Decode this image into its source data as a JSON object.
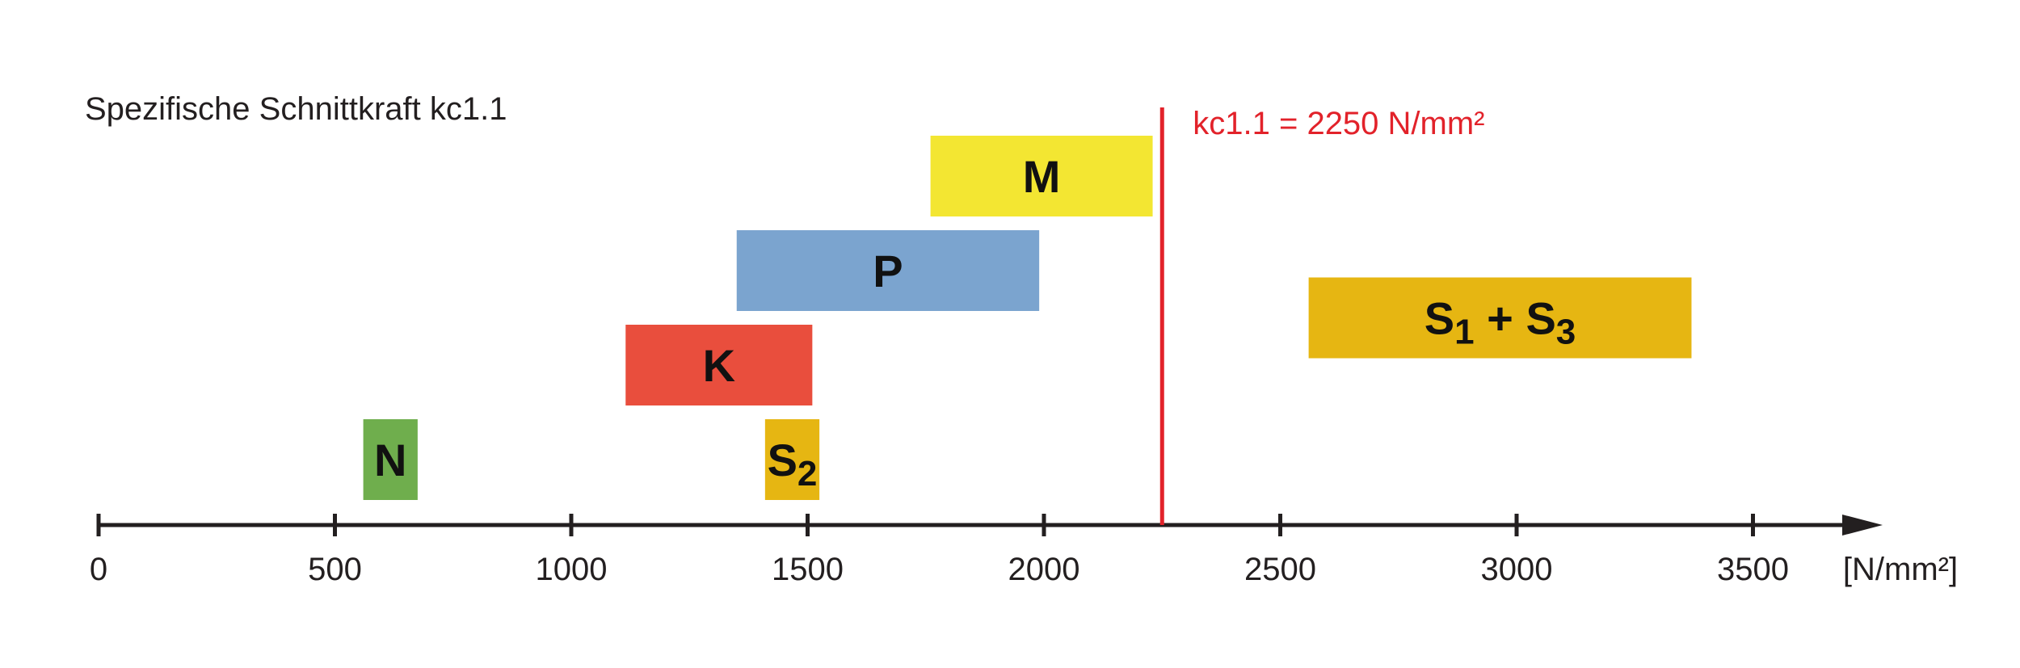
{
  "chart_data": {
    "type": "range-bar",
    "title": "Spezifische Schnittkraft kc1.1",
    "unit_label": "[N/mm²]",
    "xlim": [
      0,
      3800
    ],
    "ticks": [
      {
        "value": 0,
        "label": "0"
      },
      {
        "value": 500,
        "label": "500"
      },
      {
        "value": 1000,
        "label": "1000"
      },
      {
        "value": 1500,
        "label": "1500"
      },
      {
        "value": 2000,
        "label": "2000"
      },
      {
        "value": 2500,
        "label": "2500"
      },
      {
        "value": 3000,
        "label": "3000"
      },
      {
        "value": 3500,
        "label": "3500"
      }
    ],
    "reference_line": {
      "value": 2250,
      "label": "kc1.1 = 2250 N/mm²",
      "color": "#e2222a"
    },
    "bars": [
      {
        "id": "M",
        "base": "M",
        "sub1": "",
        "join": "",
        "base2": "",
        "sub2": "",
        "start": 1760,
        "end": 2230,
        "row": 0,
        "color": "#f3e632"
      },
      {
        "id": "P",
        "base": "P",
        "sub1": "",
        "join": "",
        "base2": "",
        "sub2": "",
        "start": 1350,
        "end": 1990,
        "row": 1,
        "color": "#7ba4cf"
      },
      {
        "id": "S13",
        "base": "S",
        "sub1": "1",
        "join": " + ",
        "base2": "S",
        "sub2": "3",
        "start": 2560,
        "end": 3370,
        "row": 1.5,
        "color": "#e6b612"
      },
      {
        "id": "K",
        "base": "K",
        "sub1": "",
        "join": "",
        "base2": "",
        "sub2": "",
        "start": 1115,
        "end": 1510,
        "row": 2,
        "color": "#e94e3d"
      },
      {
        "id": "N",
        "base": "N",
        "sub1": "",
        "join": "",
        "base2": "",
        "sub2": "",
        "start": 560,
        "end": 675,
        "row": 3,
        "color": "#6fae4d"
      },
      {
        "id": "S2",
        "base": "S",
        "sub1": "2",
        "join": "",
        "base2": "",
        "sub2": "",
        "start": 1410,
        "end": 1525,
        "row": 3,
        "color": "#e6b612"
      }
    ],
    "axis_color": "#231f20"
  }
}
